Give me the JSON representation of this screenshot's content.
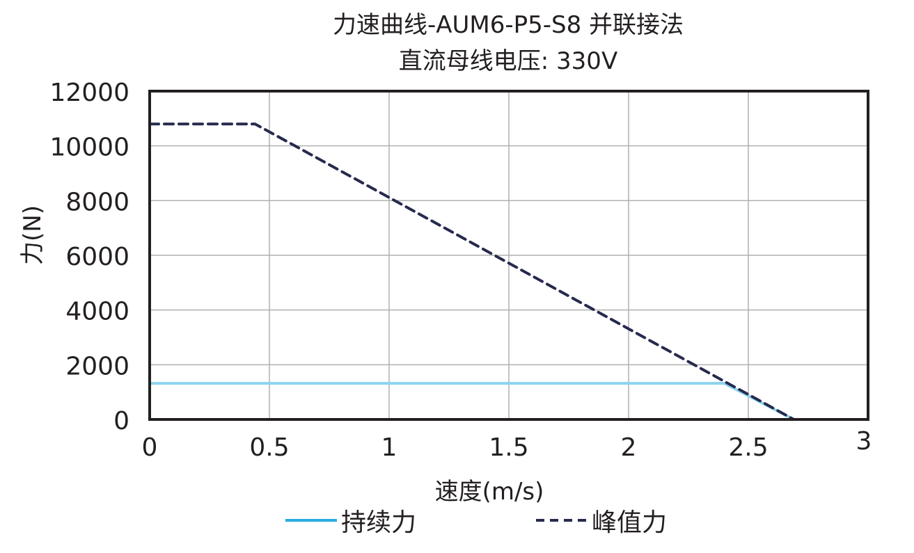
{
  "chart_data": {
    "type": "line",
    "title": "力速曲线-AUM6-P5-S8 并联接法",
    "subtitle": "直流母线电压: 330V",
    "xlabel": "速度(m/s)",
    "ylabel": "力(N)",
    "xlim": [
      0,
      3
    ],
    "ylim": [
      0,
      12000
    ],
    "x_ticks": [
      "0",
      "0.5",
      "1",
      "1.5",
      "2",
      "2.5",
      "3"
    ],
    "y_ticks": [
      "0",
      "2000",
      "4000",
      "6000",
      "8000",
      "10000",
      "12000"
    ],
    "grid": true,
    "legend_position": "bottom",
    "series": [
      {
        "name": "持续力",
        "style": "solid",
        "color": "#8dd3ef",
        "points": [
          [
            0,
            1320
          ],
          [
            2.4,
            1320
          ],
          [
            2.69,
            0
          ]
        ]
      },
      {
        "name": "峰值力",
        "style": "dashed",
        "color": "#262a4d",
        "points": [
          [
            0,
            10800
          ],
          [
            0.44,
            10800
          ],
          [
            2.69,
            0
          ]
        ]
      }
    ]
  },
  "legend": {
    "continuous_label": "持续力",
    "peak_label": "峰值力"
  }
}
